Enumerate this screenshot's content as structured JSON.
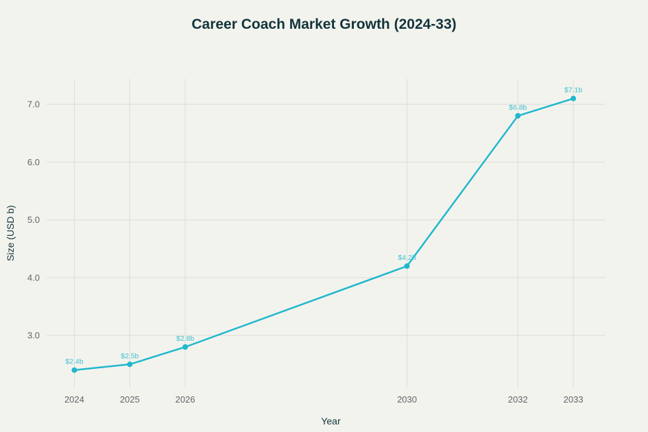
{
  "chart_data": {
    "type": "line",
    "title": "Career Coach Market Growth (2024-33)",
    "xlabel": "Year",
    "ylabel": "Size (USD b)",
    "x": [
      2024,
      2025,
      2026,
      2030,
      2032,
      2033
    ],
    "x_tick_labels": [
      "2024",
      "2025",
      "2026",
      "2030",
      "2032",
      "2033"
    ],
    "series": [
      {
        "values": [
          2.4,
          2.5,
          2.8,
          4.2,
          6.8,
          7.1
        ],
        "data_labels": [
          "$2.4b",
          "$2.5b",
          "$2.8b",
          "$4.2b",
          "$6.8b",
          "$7.1b"
        ]
      }
    ],
    "y_ticks": [
      3.0,
      4.0,
      5.0,
      6.0,
      7.0
    ],
    "y_tick_labels": [
      "3.0",
      "4.0",
      "5.0",
      "6.0",
      "7.0"
    ],
    "xlim": [
      2023.5,
      2033.58
    ],
    "ylim": [
      2.1,
      7.44
    ],
    "grid": true,
    "legend": "none",
    "colors": {
      "line": "#1FB8CD",
      "background": "#F3F3EE",
      "grid": "#DCDCD8",
      "title": "#13343B"
    }
  }
}
